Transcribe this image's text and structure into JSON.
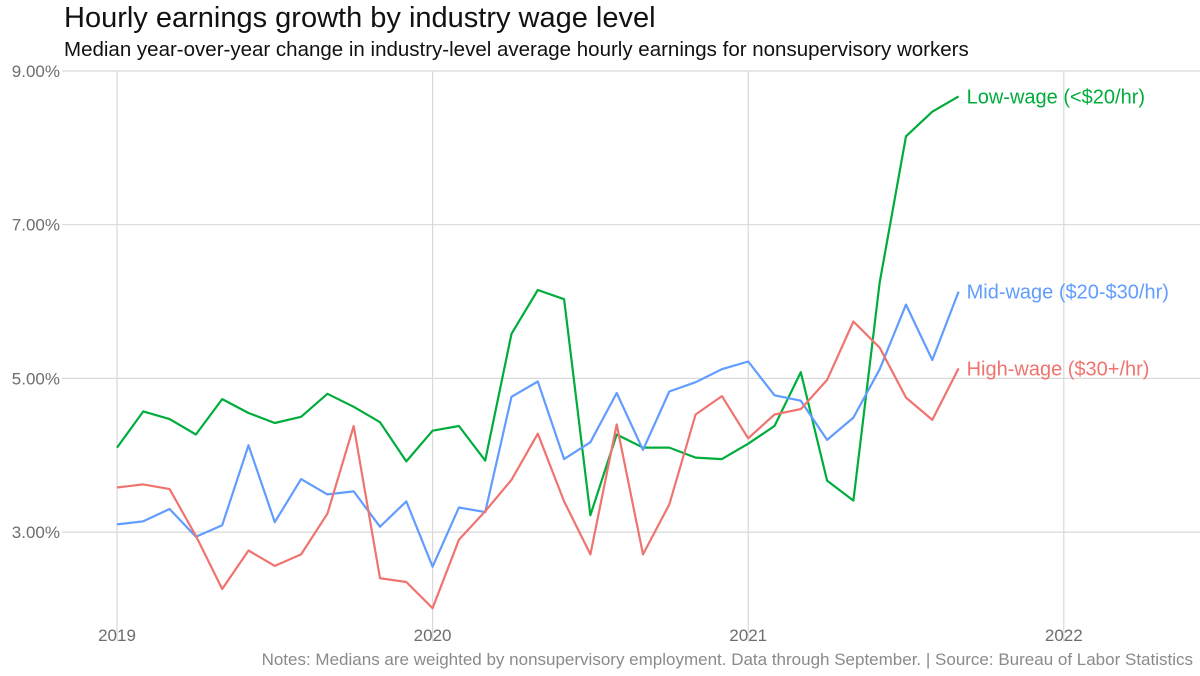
{
  "chart_data": {
    "type": "line",
    "title": "Hourly earnings growth by industry wage level",
    "subtitle": "Median year-over-year change in industry-level average hourly earnings for nonsupervisory workers",
    "note": "Notes: Medians are weighted by nonsupervisory employment. Data through September. | Source: Bureau of Labor Statistics",
    "x_start": "2019-01",
    "x_ticks": [
      "2019",
      "2020",
      "2021",
      "2022"
    ],
    "y_ticks": [
      "3.00%",
      "5.00%",
      "7.00%",
      "9.00%"
    ],
    "y_tick_values": [
      3,
      5,
      7,
      9
    ],
    "xlim": [
      "2019-01",
      "2022-05"
    ],
    "ylim": [
      1.7,
      9.0
    ],
    "grid": true,
    "legend": "direct labels at line ends",
    "series": [
      {
        "name": "Low-wage (<$20/hr)",
        "label": "Low-wage (<$20/hr)",
        "color": "#00ad3c",
        "values": [
          4.1,
          4.57,
          4.47,
          4.27,
          4.73,
          4.55,
          4.42,
          4.5,
          4.8,
          4.63,
          4.43,
          3.92,
          4.32,
          4.38,
          3.93,
          5.58,
          6.15,
          6.03,
          3.22,
          4.27,
          4.1,
          4.1,
          3.97,
          3.95,
          4.15,
          4.38,
          5.08,
          3.67,
          3.41,
          6.25,
          8.15,
          8.47,
          8.67
        ]
      },
      {
        "name": "Mid-wage ($20-$30/hr)",
        "label": "Mid-wage ($20-$30/hr)",
        "color": "#619cff",
        "values": [
          3.1,
          3.14,
          3.3,
          2.94,
          3.09,
          4.13,
          3.13,
          3.69,
          3.49,
          3.53,
          3.07,
          3.4,
          2.55,
          3.32,
          3.26,
          4.76,
          4.96,
          3.95,
          4.17,
          4.81,
          4.07,
          4.83,
          4.95,
          5.12,
          5.22,
          4.78,
          4.71,
          4.2,
          4.49,
          5.12,
          5.96,
          5.24,
          6.13
        ]
      },
      {
        "name": "High-wage ($30+/hr)",
        "label": "High-wage ($30+/hr)",
        "color": "#ef7470",
        "values": [
          3.58,
          3.62,
          3.56,
          2.95,
          2.26,
          2.76,
          2.56,
          2.71,
          3.24,
          4.38,
          2.4,
          2.35,
          2.01,
          2.9,
          3.27,
          3.68,
          4.28,
          3.4,
          2.71,
          4.4,
          2.71,
          3.36,
          4.53,
          4.77,
          4.22,
          4.53,
          4.6,
          4.98,
          5.74,
          5.4,
          4.75,
          4.46,
          5.13
        ]
      }
    ]
  }
}
